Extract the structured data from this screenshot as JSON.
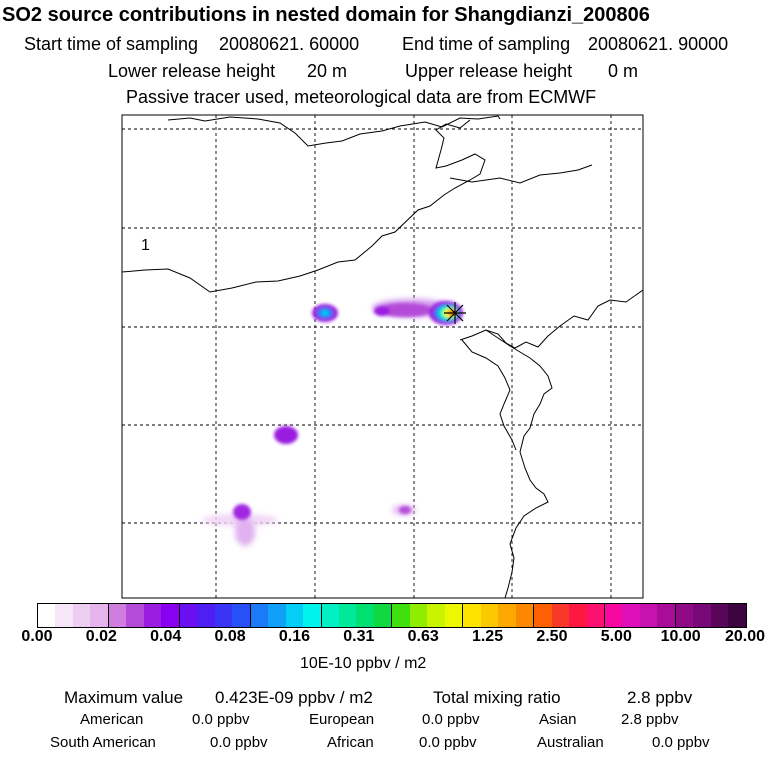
{
  "header": {
    "title": "SO2 source contributions in nested domain for Shangdianzi_200806",
    "start_label": "Start time of sampling",
    "start_value": "20080621. 60000",
    "end_label": "End time of sampling",
    "end_value": "20080621. 90000",
    "lower_label": "Lower release height",
    "lower_value": "20 m",
    "upper_label": "Upper release height",
    "upper_value": "0 m",
    "note": "Passive tracer used, meteorological data are from ECMWF"
  },
  "map": {
    "region_label": "1",
    "station_marker": "station-star-icon"
  },
  "colorbar": {
    "colors": [
      "#ffffff",
      "#f6e6f8",
      "#eecdf2",
      "#e5b4ec",
      "#cf7ee0",
      "#b44cd8",
      "#9a1ee0",
      "#8a00f0",
      "#6a10f0",
      "#4e1ef2",
      "#3a34f6",
      "#2850f8",
      "#1a7af8",
      "#10a0f8",
      "#04cef6",
      "#00f4ec",
      "#00f0c4",
      "#00e89a",
      "#00e070",
      "#10d840",
      "#40e010",
      "#90ec00",
      "#c8f400",
      "#ecf800",
      "#fce400",
      "#fcc800",
      "#fca800",
      "#fc8800",
      "#fc6000",
      "#f83828",
      "#fc1840",
      "#fc1070",
      "#f808a0",
      "#e010b8",
      "#c812b0",
      "#a80c98",
      "#900a88",
      "#780878",
      "#5a0658",
      "#3c0440"
    ],
    "ticks": [
      "0.00",
      "0.02",
      "0.04",
      "0.08",
      "0.16",
      "0.31",
      "0.63",
      "1.25",
      "2.50",
      "5.00",
      "10.00",
      "20.00"
    ],
    "unit": "10E-10 ppbv / m2"
  },
  "summary": {
    "max_label": "Maximum value",
    "max_value": "0.423E-09 ppbv / m2",
    "total_label": "Total mixing ratio",
    "total_value": "2.8 ppbv",
    "regions": [
      {
        "name": "American",
        "value": "0.0 ppbv"
      },
      {
        "name": "European",
        "value": "0.0 ppbv"
      },
      {
        "name": "Asian",
        "value": "2.8 ppbv"
      },
      {
        "name": "South American",
        "value": "0.0 ppbv"
      },
      {
        "name": "African",
        "value": "0.0 ppbv"
      },
      {
        "name": "Australian",
        "value": "0.0 ppbv"
      }
    ]
  }
}
